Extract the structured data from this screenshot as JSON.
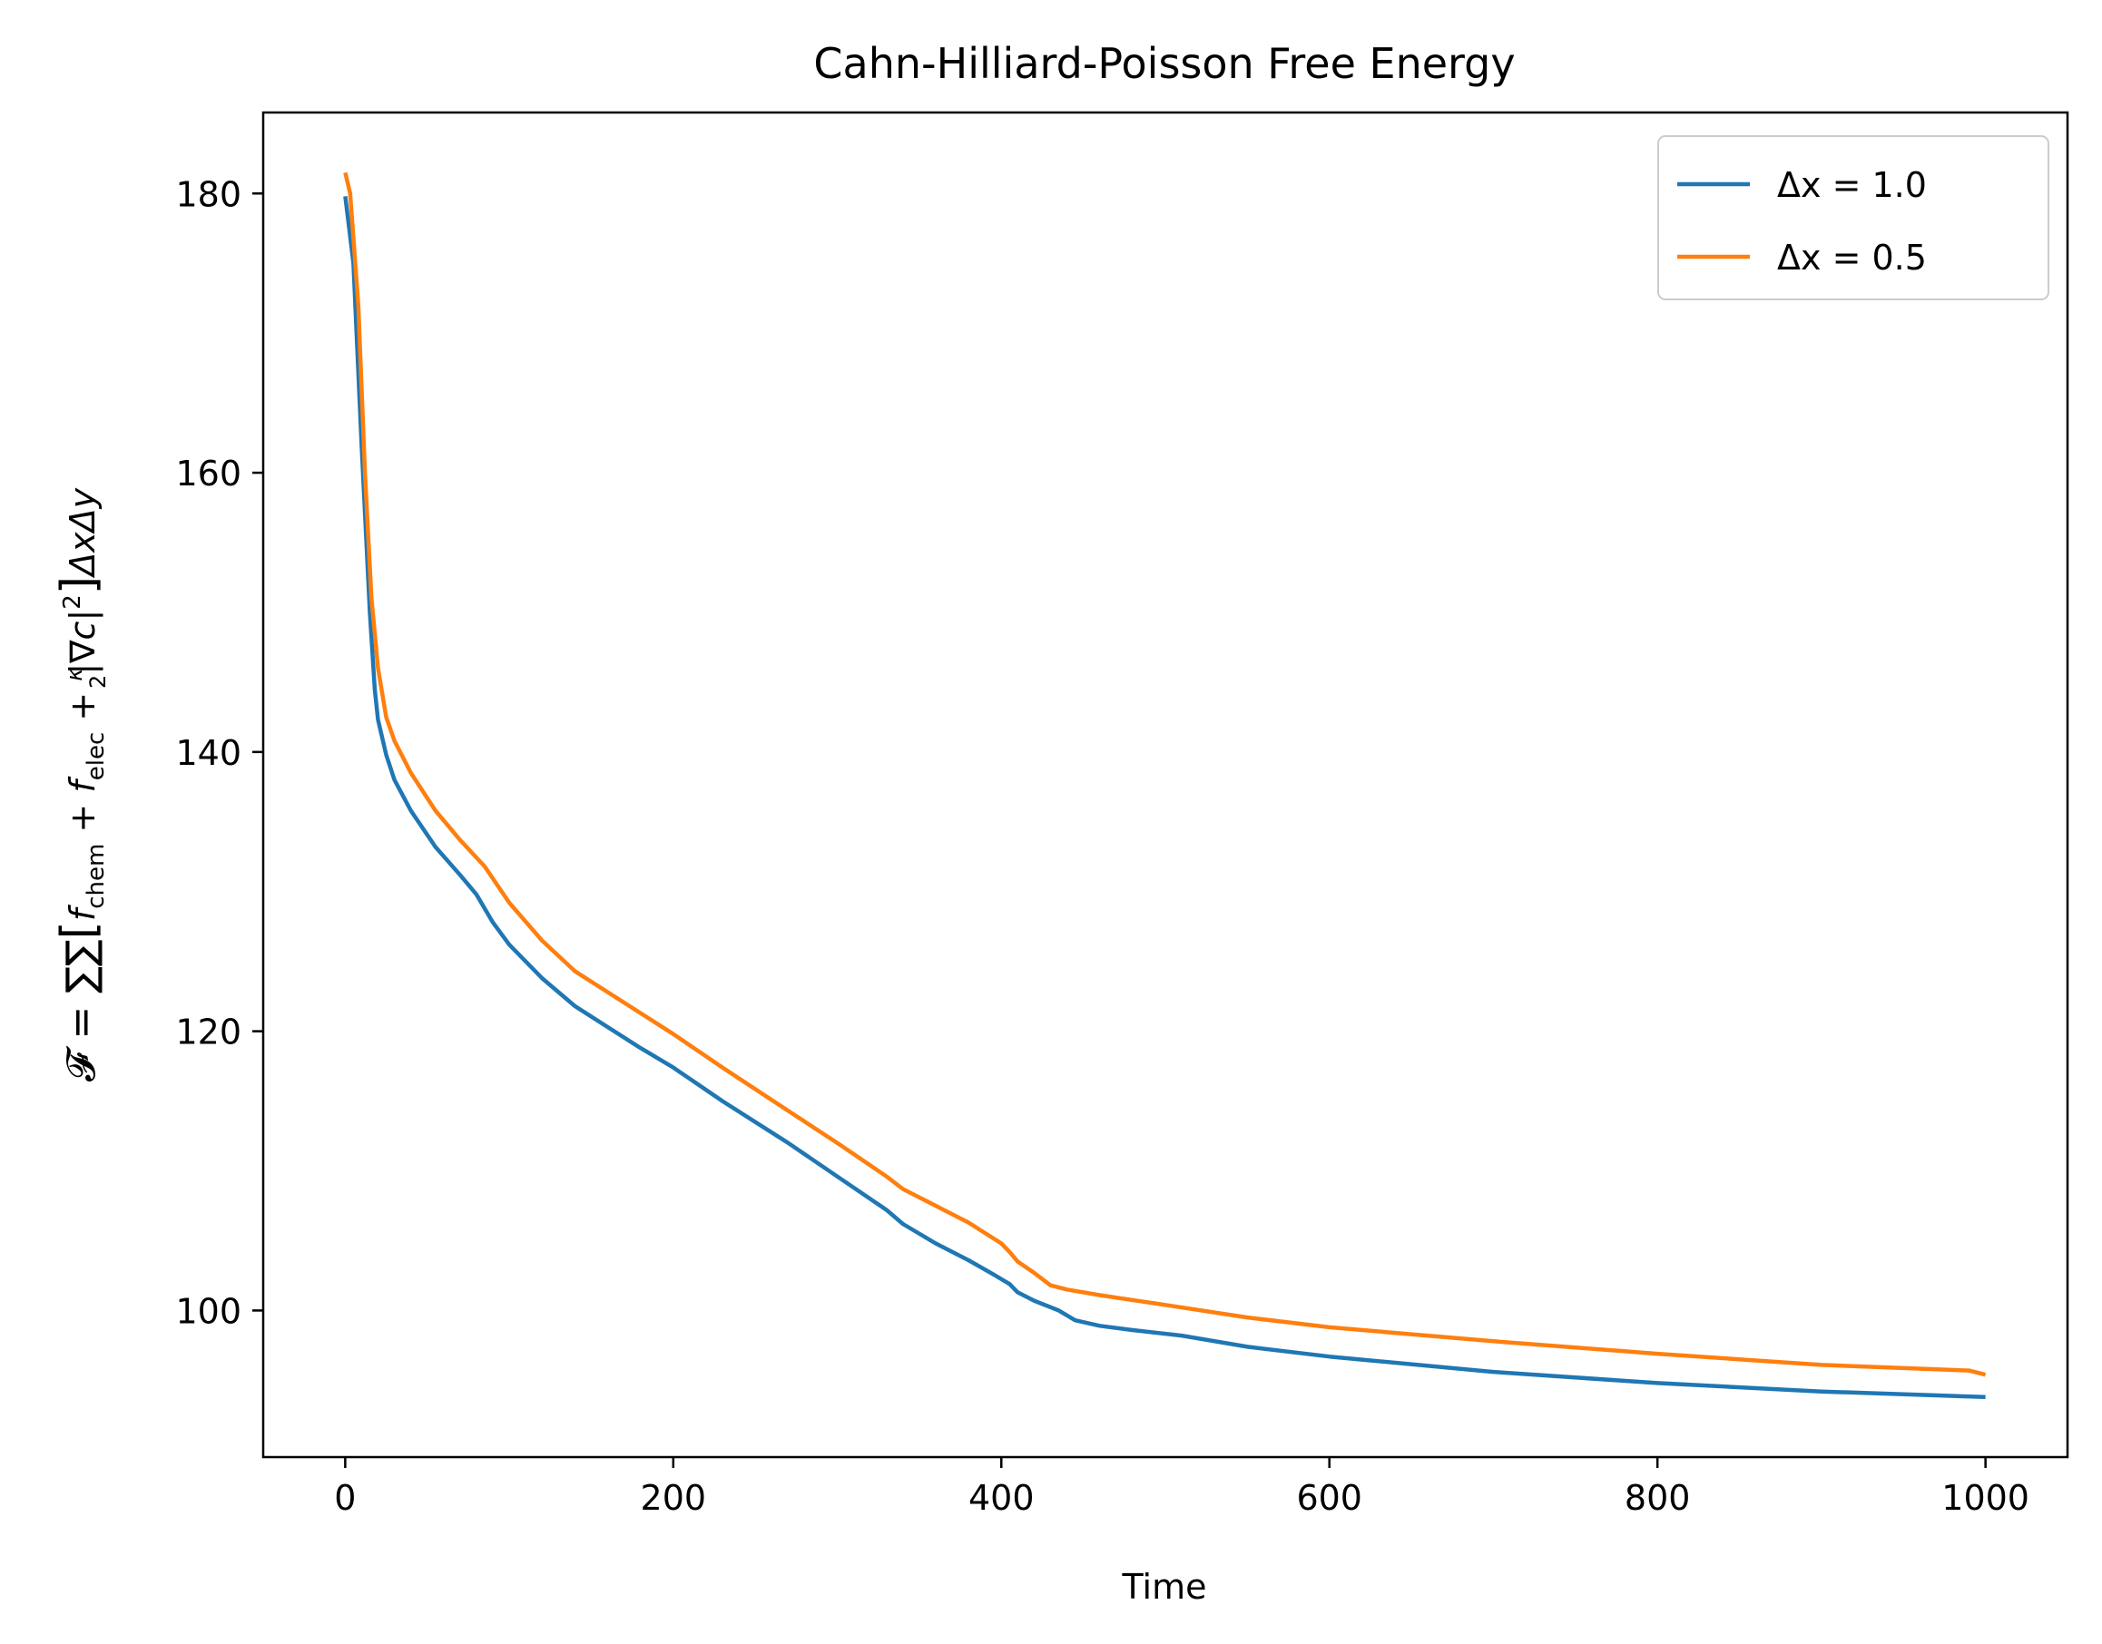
{
  "chart_data": {
    "type": "line",
    "title": "Cahn-Hilliard-Poisson Free Energy",
    "xlabel": "Time",
    "ylabel": {
      "lead": "𝓕 = ∑∑",
      "f1": "f",
      "sub1": "chem",
      "plus1": " + ",
      "f2": "f",
      "sub2": "elec",
      "plus2": " + ",
      "kappa": "κ",
      "two": "2",
      "grad": "|∇c|",
      "sup": "2",
      "tail": "ΔxΔy"
    },
    "xlim": [
      -50,
      1050
    ],
    "ylim": [
      89.5,
      185.8
    ],
    "xticks": [
      0,
      200,
      400,
      600,
      800,
      1000
    ],
    "yticks": [
      100,
      120,
      140,
      160,
      180
    ],
    "legend_position": "upper right",
    "series": [
      {
        "name": "Δx = 1.0",
        "color": "#1f77b4",
        "x": [
          0,
          5,
          10,
          15,
          18,
          20,
          25,
          30,
          40,
          55,
          70,
          80,
          90,
          100,
          120,
          140,
          160,
          180,
          200,
          230,
          270,
          300,
          330,
          340,
          360,
          380,
          395,
          405,
          410,
          420,
          435,
          445,
          460,
          480,
          510,
          550,
          600,
          700,
          800,
          900,
          1000
        ],
        "y": [
          179.8,
          175,
          162,
          150,
          144.5,
          142.3,
          139.8,
          138,
          135.8,
          133.2,
          131.2,
          129.8,
          127.8,
          126.2,
          123.8,
          121.8,
          120.3,
          118.8,
          117.4,
          115,
          112,
          109.6,
          107.2,
          106.2,
          104.8,
          103.6,
          102.6,
          101.9,
          101.3,
          100.7,
          100,
          99.3,
          98.9,
          98.6,
          98.2,
          97.4,
          96.7,
          95.6,
          94.8,
          94.2,
          93.8
        ]
      },
      {
        "name": "Δx = 0.5",
        "color": "#ff7f0e",
        "x": [
          0,
          3,
          8,
          12,
          16,
          20,
          25,
          30,
          40,
          55,
          70,
          85,
          100,
          120,
          140,
          160,
          180,
          200,
          230,
          270,
          300,
          330,
          340,
          360,
          380,
          400,
          405,
          410,
          420,
          430,
          440,
          460,
          500,
          550,
          600,
          700,
          800,
          900,
          990,
          1000
        ],
        "y": [
          181.5,
          180,
          172,
          160,
          151,
          146,
          142.5,
          140.8,
          138.5,
          135.8,
          133.7,
          131.8,
          129.2,
          126.5,
          124.3,
          122.8,
          121.3,
          119.8,
          117.4,
          114.3,
          112,
          109.6,
          108.7,
          107.5,
          106.3,
          104.8,
          104.2,
          103.5,
          102.7,
          101.8,
          101.5,
          101.1,
          100.4,
          99.5,
          98.8,
          97.8,
          96.9,
          96.1,
          95.7,
          95.4
        ]
      }
    ]
  }
}
